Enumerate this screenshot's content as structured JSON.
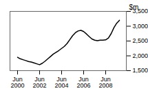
{
  "chart_data": {
    "type": "line",
    "title": "$m",
    "categories": [
      "Jun\n2000",
      null,
      null,
      null,
      null,
      null,
      null,
      null,
      "Jun\n2002",
      null,
      null,
      null,
      null,
      null,
      null,
      null,
      "Jun\n2004",
      null,
      null,
      null,
      null,
      null,
      null,
      null,
      "Jun\n2006",
      null,
      null,
      null,
      null,
      null,
      null,
      null,
      "Jun\n2008",
      null,
      null,
      null,
      null,
      null
    ],
    "values": [
      1950,
      1900,
      1870,
      1840,
      1810,
      1790,
      1760,
      1730,
      1700,
      1750,
      1820,
      1900,
      1980,
      2060,
      2120,
      2180,
      2250,
      2320,
      2420,
      2550,
      2680,
      2780,
      2840,
      2860,
      2820,
      2740,
      2650,
      2570,
      2530,
      2510,
      2530,
      2530,
      2540,
      2600,
      2750,
      2950,
      3100,
      3200
    ],
    "color": "#000000",
    "ylim": [
      1500,
      3500
    ],
    "yticks": [
      1500,
      2000,
      2500,
      3000,
      3500
    ],
    "grid": false
  }
}
